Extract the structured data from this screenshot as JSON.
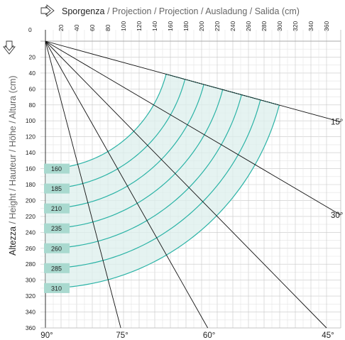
{
  "titles": {
    "x_title_main": "Sporgenza",
    "x_title_rest": " / Projection / Projection / Ausladung / Salida (cm)",
    "y_title_main": "Altezza",
    "y_title_rest": " / Height / Hauteur / Höhe / Altura  (cm)"
  },
  "icons": {
    "x_arrow": "outline-arrow-right-icon",
    "y_arrow": "outline-arrow-down-icon"
  },
  "colors": {
    "teal": "#2bb3a6",
    "band_fill": "#dcefec",
    "label_fill": "#a9d9cf",
    "grid": "#cccccc",
    "ray": "#111111"
  },
  "chart_data": {
    "type": "diagram",
    "x_ticks": [
      0,
      20,
      40,
      60,
      80,
      100,
      120,
      140,
      160,
      180,
      200,
      220,
      240,
      260,
      280,
      300,
      320,
      340,
      360
    ],
    "y_ticks": [
      20,
      40,
      60,
      80,
      100,
      120,
      140,
      160,
      180,
      200,
      220,
      240,
      260,
      280,
      300,
      320,
      340,
      360
    ],
    "xlim": [
      0,
      360
    ],
    "ylim": [
      0,
      360
    ],
    "arm_lengths": [
      160,
      185,
      210,
      235,
      260,
      285,
      310
    ],
    "arc_angle_range_deg": [
      15,
      90
    ],
    "angles": [
      {
        "label": "15°",
        "deg": 15
      },
      {
        "label": "30°",
        "deg": 30
      },
      {
        "label": "45°",
        "deg": 45
      },
      {
        "label": "60°",
        "deg": 60
      },
      {
        "label": "75°",
        "deg": 75
      },
      {
        "label": "90°",
        "deg": 90
      }
    ]
  }
}
